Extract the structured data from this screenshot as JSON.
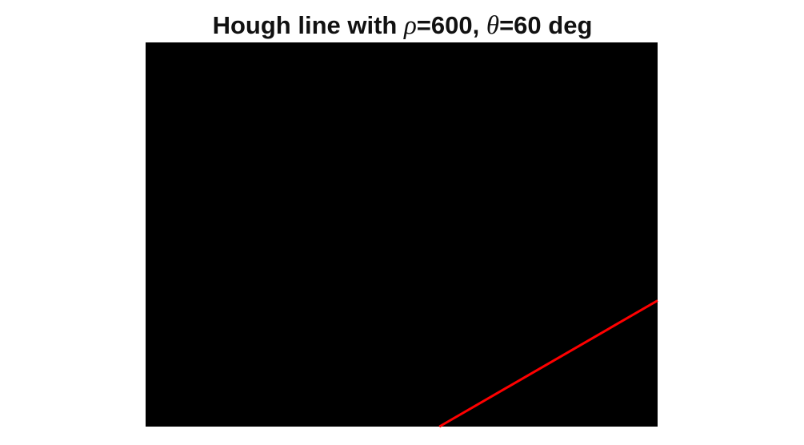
{
  "chart_data": {
    "type": "image",
    "title": {
      "prefix": "Hough line with ",
      "rho_symbol": "ρ",
      "rho_text": "=600, ",
      "theta_symbol": "θ",
      "theta_text": "=60 deg"
    },
    "image": {
      "background_color": "#000000",
      "width": 640,
      "height": 480
    },
    "hough_line": {
      "rho": 600,
      "theta_deg": 60,
      "color": "#ff0000"
    },
    "xlim": [
      0.5,
      640.5
    ],
    "ylim": [
      0.5,
      480.5
    ]
  }
}
